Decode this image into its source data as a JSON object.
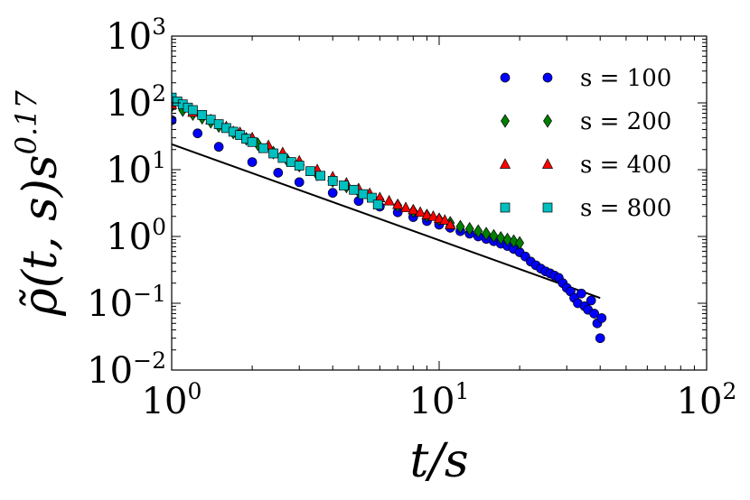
{
  "chart_data": {
    "type": "scatter",
    "xlabel": "t/s",
    "ylabel": "ρ̃(t, s)s^0.17",
    "xscale": "log",
    "yscale": "log",
    "xlim": [
      1,
      100
    ],
    "ylim": [
      0.01,
      1000
    ],
    "x_ticks": [
      {
        "value": 1,
        "base": "10",
        "exp": "0"
      },
      {
        "value": 10,
        "base": "10",
        "exp": "1"
      },
      {
        "value": 100,
        "base": "10",
        "exp": "2"
      }
    ],
    "y_ticks": [
      {
        "value": 0.01,
        "base": "10",
        "exp": "−2"
      },
      {
        "value": 0.1,
        "base": "10",
        "exp": "−1"
      },
      {
        "value": 1,
        "base": "10",
        "exp": "0"
      },
      {
        "value": 10,
        "base": "10",
        "exp": "1"
      },
      {
        "value": 100,
        "base": "10",
        "exp": "2"
      },
      {
        "value": 1000,
        "base": "10",
        "exp": "3"
      }
    ],
    "grid": false,
    "legend_position": "top-right",
    "series": [
      {
        "name": "s = 100",
        "marker": "circle",
        "color": "#0000ff",
        "points": [
          [
            1.0,
            55
          ],
          [
            1.25,
            35
          ],
          [
            1.5,
            22
          ],
          [
            2.0,
            13
          ],
          [
            2.5,
            9
          ],
          [
            3.0,
            6.5
          ],
          [
            4.0,
            4.5
          ],
          [
            5.0,
            3.4
          ],
          [
            6.0,
            2.8
          ],
          [
            7.0,
            2.3
          ],
          [
            8.0,
            1.95
          ],
          [
            9.0,
            1.7
          ],
          [
            10.0,
            1.5
          ],
          [
            11.0,
            1.35
          ],
          [
            12.0,
            1.2
          ],
          [
            13.0,
            1.1
          ],
          [
            14.0,
            1.0
          ],
          [
            15.0,
            0.92
          ],
          [
            16.0,
            0.85
          ],
          [
            17.0,
            0.78
          ],
          [
            18.0,
            0.72
          ],
          [
            19.0,
            0.65
          ],
          [
            20.0,
            0.58
          ],
          [
            21.0,
            0.5
          ],
          [
            22.0,
            0.42
          ],
          [
            23.0,
            0.37
          ],
          [
            24.0,
            0.33
          ],
          [
            25.0,
            0.3
          ],
          [
            26.0,
            0.28
          ],
          [
            27.0,
            0.26
          ],
          [
            28.0,
            0.24
          ],
          [
            29.0,
            0.2
          ],
          [
            30.0,
            0.17
          ],
          [
            31.0,
            0.15
          ],
          [
            32.0,
            0.12
          ],
          [
            33.0,
            0.1
          ],
          [
            34.0,
            0.14
          ],
          [
            35.0,
            0.09
          ],
          [
            36.0,
            0.08
          ],
          [
            37.0,
            0.11
          ],
          [
            38.0,
            0.07
          ],
          [
            39.0,
            0.05
          ],
          [
            40.0,
            0.03
          ],
          [
            40.5,
            0.06
          ]
        ]
      },
      {
        "name": "s = 200",
        "marker": "diamond",
        "color": "#008000",
        "points": [
          [
            1.0,
            90
          ],
          [
            1.1,
            78
          ],
          [
            1.2,
            68
          ],
          [
            1.3,
            60
          ],
          [
            1.4,
            52
          ],
          [
            1.5,
            45
          ],
          [
            1.7,
            36
          ],
          [
            1.9,
            29
          ],
          [
            2.1,
            24
          ],
          [
            2.4,
            18
          ],
          [
            2.7,
            14
          ],
          [
            3.0,
            11.5
          ],
          [
            3.5,
            8.5
          ],
          [
            4.0,
            6.8
          ],
          [
            4.5,
            5.6
          ],
          [
            5.0,
            4.7
          ],
          [
            6.0,
            3.6
          ],
          [
            7.0,
            2.9
          ],
          [
            8.0,
            2.4
          ],
          [
            9.0,
            2.05
          ],
          [
            10.0,
            1.8
          ],
          [
            11.0,
            1.6
          ],
          [
            12.0,
            1.4
          ],
          [
            13.0,
            1.3
          ],
          [
            14.0,
            1.2
          ],
          [
            15.0,
            1.1
          ],
          [
            16.0,
            1.02
          ],
          [
            17.0,
            0.95
          ],
          [
            18.0,
            0.9
          ],
          [
            19.0,
            0.85
          ],
          [
            20.0,
            0.8
          ]
        ]
      },
      {
        "name": "s = 400",
        "marker": "triangle",
        "color": "#ff0000",
        "points": [
          [
            1.0,
            95
          ],
          [
            1.2,
            72
          ],
          [
            1.4,
            56
          ],
          [
            1.6,
            44
          ],
          [
            1.8,
            36
          ],
          [
            2.0,
            30
          ],
          [
            2.3,
            23
          ],
          [
            2.6,
            18
          ],
          [
            3.0,
            13.5
          ],
          [
            3.5,
            10
          ],
          [
            4.0,
            7.8
          ],
          [
            4.5,
            6.3
          ],
          [
            5.0,
            5.2
          ],
          [
            5.5,
            4.4
          ],
          [
            6.0,
            3.8
          ],
          [
            6.5,
            3.4
          ],
          [
            7.0,
            3.0
          ],
          [
            7.5,
            2.7
          ],
          [
            8.0,
            2.5
          ],
          [
            8.5,
            2.3
          ],
          [
            9.0,
            2.1
          ],
          [
            9.5,
            2.0
          ],
          [
            10.0,
            1.85
          ],
          [
            10.5,
            1.75
          ],
          [
            11.0,
            1.5
          ]
        ]
      },
      {
        "name": "s = 800",
        "marker": "square",
        "color": "#00bfbf",
        "points": [
          [
            1.0,
            120
          ],
          [
            1.05,
            105
          ],
          [
            1.1,
            95
          ],
          [
            1.15,
            85
          ],
          [
            1.2,
            78
          ],
          [
            1.3,
            66
          ],
          [
            1.4,
            56
          ],
          [
            1.5,
            48
          ],
          [
            1.6,
            42
          ],
          [
            1.7,
            37
          ],
          [
            1.8,
            33
          ],
          [
            1.9,
            29
          ],
          [
            2.0,
            26
          ],
          [
            2.2,
            21
          ],
          [
            2.4,
            17.5
          ],
          [
            2.6,
            15
          ],
          [
            2.8,
            13
          ],
          [
            3.0,
            11.5
          ],
          [
            3.3,
            9.5
          ],
          [
            3.6,
            8.1
          ],
          [
            4.0,
            6.8
          ],
          [
            4.4,
            5.8
          ],
          [
            4.8,
            5.0
          ],
          [
            5.2,
            4.3
          ],
          [
            5.6,
            3.8
          ],
          [
            5.9,
            3.0
          ]
        ]
      }
    ],
    "reference_line": {
      "style": "solid",
      "color": "#000000",
      "points": [
        [
          1.0,
          24
        ],
        [
          40.0,
          0.12
        ]
      ]
    }
  }
}
